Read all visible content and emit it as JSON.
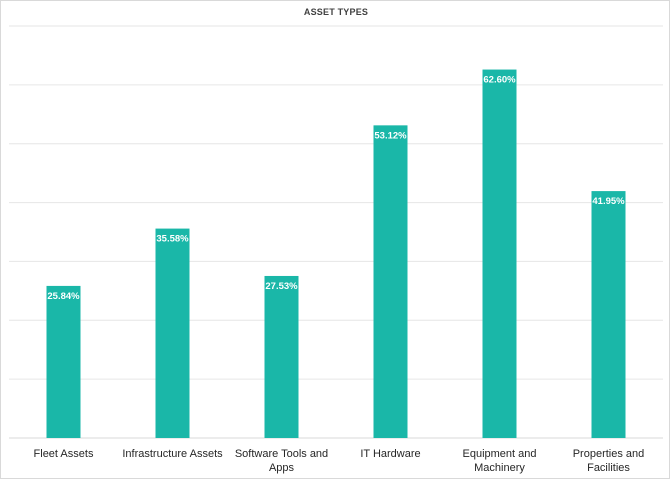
{
  "chart_data": {
    "type": "bar",
    "title": "ASSET TYPES",
    "xlabel": "",
    "ylabel": "",
    "categories": [
      "Fleet Assets",
      "Infrastructure Assets",
      "Software Tools and Apps",
      "IT Hardware",
      "Equipment and Machinery",
      "Properties and Facilities"
    ],
    "values": [
      25.84,
      35.58,
      27.53,
      53.12,
      62.6,
      41.95
    ],
    "value_labels": [
      "25.84%",
      "35.58%",
      "27.53%",
      "53.12%",
      "62.60%",
      "41.95%"
    ],
    "ylim": [
      0,
      70
    ],
    "y_gridline_step": 10,
    "y_tick_labels_shown": false,
    "grid": true,
    "legend": "none",
    "colors": {
      "bar": "#1ab7a8",
      "bar_label": "#ffffff",
      "grid": "#e6e6e6",
      "axis": "#d9d9d9",
      "title": "#404040",
      "category_text": "#262626"
    }
  }
}
